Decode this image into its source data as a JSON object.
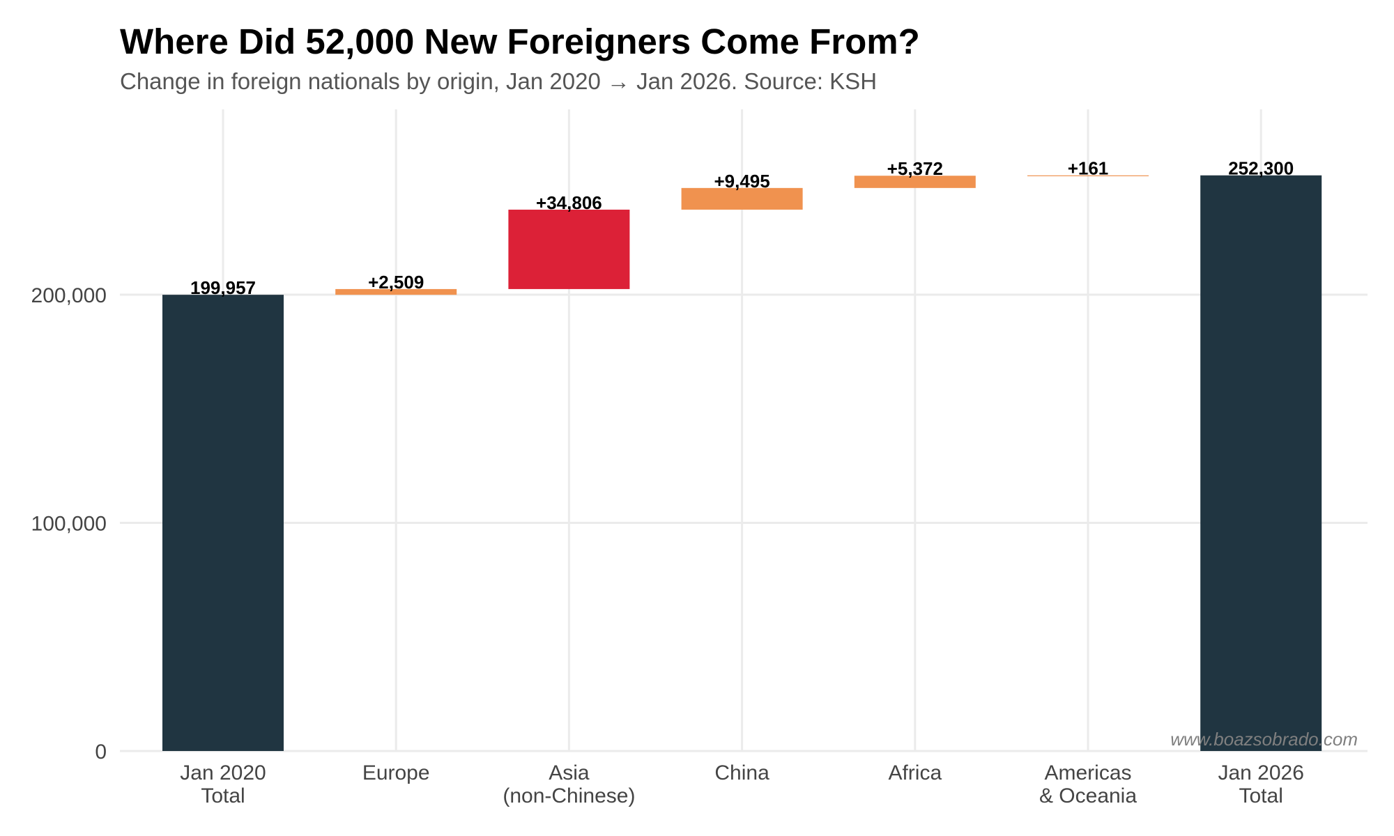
{
  "header": {
    "title": "Where Did 52,000 New Foreigners Come From?",
    "subtitle": "Change in foreign nationals by origin, Jan 2020 → Jan 2026. Source: KSH"
  },
  "watermark": "www.boazsobrado.com",
  "colors": {
    "total": "#203541",
    "increase": "#F0924F",
    "highlight": "#DC2137",
    "grid": "#EBEBEB",
    "axis_text": "#444444"
  },
  "chart_data": {
    "type": "bar",
    "subtype": "waterfall",
    "title": "Where Did 52,000 New Foreigners Come From?",
    "subtitle": "Change in foreign nationals by origin, Jan 2020 → Jan 2026. Source: KSH",
    "xlabel": "",
    "ylabel": "",
    "ylim": [
      0,
      262000
    ],
    "yticks": [
      0,
      100000,
      200000
    ],
    "ytick_labels": [
      "0",
      "100,000",
      "200,000"
    ],
    "grid": true,
    "legend": null,
    "categories": [
      [
        "Jan 2020",
        "Total"
      ],
      [
        "Europe"
      ],
      [
        "Asia",
        "(non-Chinese)"
      ],
      [
        "China"
      ],
      [
        "Africa"
      ],
      [
        "Americas",
        "& Oceania"
      ],
      [
        "Jan 2026",
        "Total"
      ]
    ],
    "bars": [
      {
        "category": "Jan 2020 Total",
        "kind": "total",
        "start": 0,
        "end": 199957,
        "value": 199957,
        "label": "199,957",
        "color": "#203541"
      },
      {
        "category": "Europe",
        "kind": "increase",
        "start": 199957,
        "end": 202466,
        "value": 2509,
        "label": "+2,509",
        "color": "#F0924F"
      },
      {
        "category": "Asia (non-Chinese)",
        "kind": "increase",
        "start": 202466,
        "end": 237272,
        "value": 34806,
        "label": "+34,806",
        "color": "#DC2137"
      },
      {
        "category": "China",
        "kind": "increase",
        "start": 237272,
        "end": 246767,
        "value": 9495,
        "label": "+9,495",
        "color": "#F0924F"
      },
      {
        "category": "Africa",
        "kind": "increase",
        "start": 246767,
        "end": 252139,
        "value": 5372,
        "label": "+5,372",
        "color": "#F0924F"
      },
      {
        "category": "Americas & Oceania",
        "kind": "increase",
        "start": 252139,
        "end": 252300,
        "value": 161,
        "label": "+161",
        "color": "#F0924F"
      },
      {
        "category": "Jan 2026 Total",
        "kind": "total",
        "start": 0,
        "end": 252300,
        "value": 252300,
        "label": "252,300",
        "color": "#203541"
      }
    ],
    "annotations": [
      "www.boazsobrado.com"
    ]
  }
}
